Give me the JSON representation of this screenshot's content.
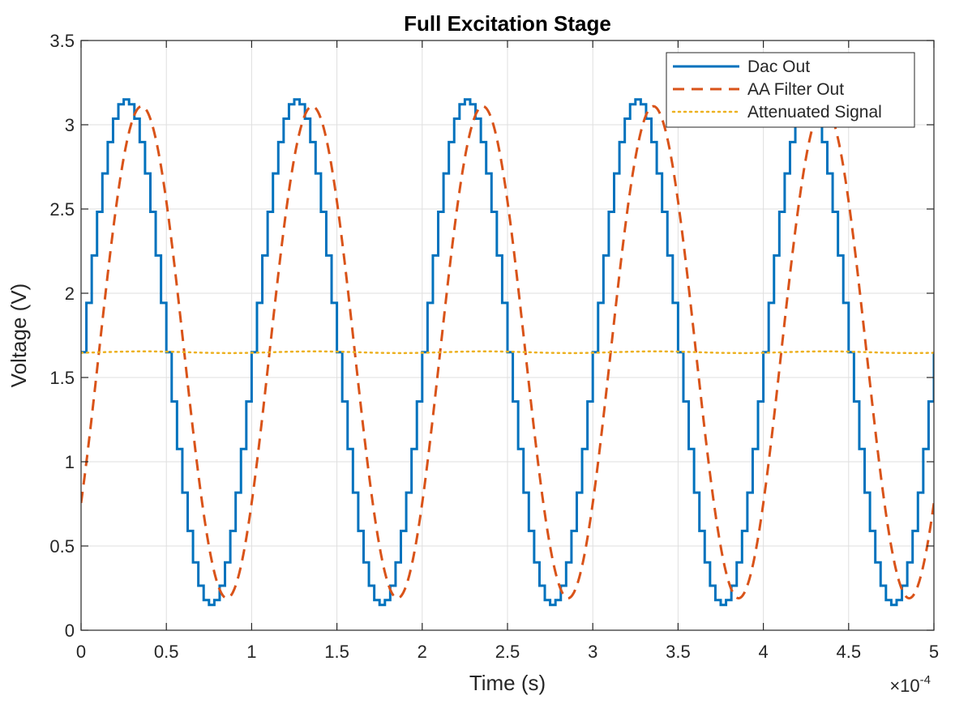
{
  "chart_data": {
    "type": "line",
    "title": "Full Excitation Stage",
    "xlabel": "Time (s)",
    "ylabel": "Voltage (V)",
    "x_exponent_label": "×10",
    "x_exponent_power": "-4",
    "xlim": [
      0,
      0.0005
    ],
    "ylim": [
      0,
      3.5
    ],
    "x_ticks": [
      0,
      5e-05,
      0.0001,
      0.00015,
      0.0002,
      0.00025,
      0.0003,
      0.00035,
      0.0004,
      0.00045,
      0.0005
    ],
    "x_tick_labels": [
      "0",
      "0.5",
      "1",
      "1.5",
      "2",
      "2.5",
      "3",
      "3.5",
      "4",
      "4.5",
      "5"
    ],
    "y_ticks": [
      0,
      0.5,
      1,
      1.5,
      2,
      2.5,
      3,
      3.5
    ],
    "y_tick_labels": [
      "0",
      "0.5",
      "1",
      "1.5",
      "2",
      "2.5",
      "3",
      "3.5"
    ],
    "grid": true,
    "legend_position": "top-right",
    "series": [
      {
        "name": "Dac Out",
        "style": "solid-step",
        "color": "#0072BD",
        "period": 0.0001,
        "offset": 1.65,
        "amplitude": 1.5,
        "steps_per_period": 32,
        "x_start": 0,
        "x_end": 0.0005
      },
      {
        "name": "AA Filter Out",
        "style": "dashed",
        "color": "#D95319",
        "period": 0.0001,
        "offset": 1.65,
        "amplitude": 1.46,
        "phase_delay": 1.05e-05,
        "x_start": 0,
        "x_end": 0.0005
      },
      {
        "name": "Attenuated Signal",
        "style": "dotted",
        "color": "#EDB120",
        "period": 0.0001,
        "offset": 1.65,
        "amplitude": 0.005,
        "phase_delay": 1.2e-05,
        "x_start": 0,
        "x_end": 0.0005
      }
    ]
  }
}
